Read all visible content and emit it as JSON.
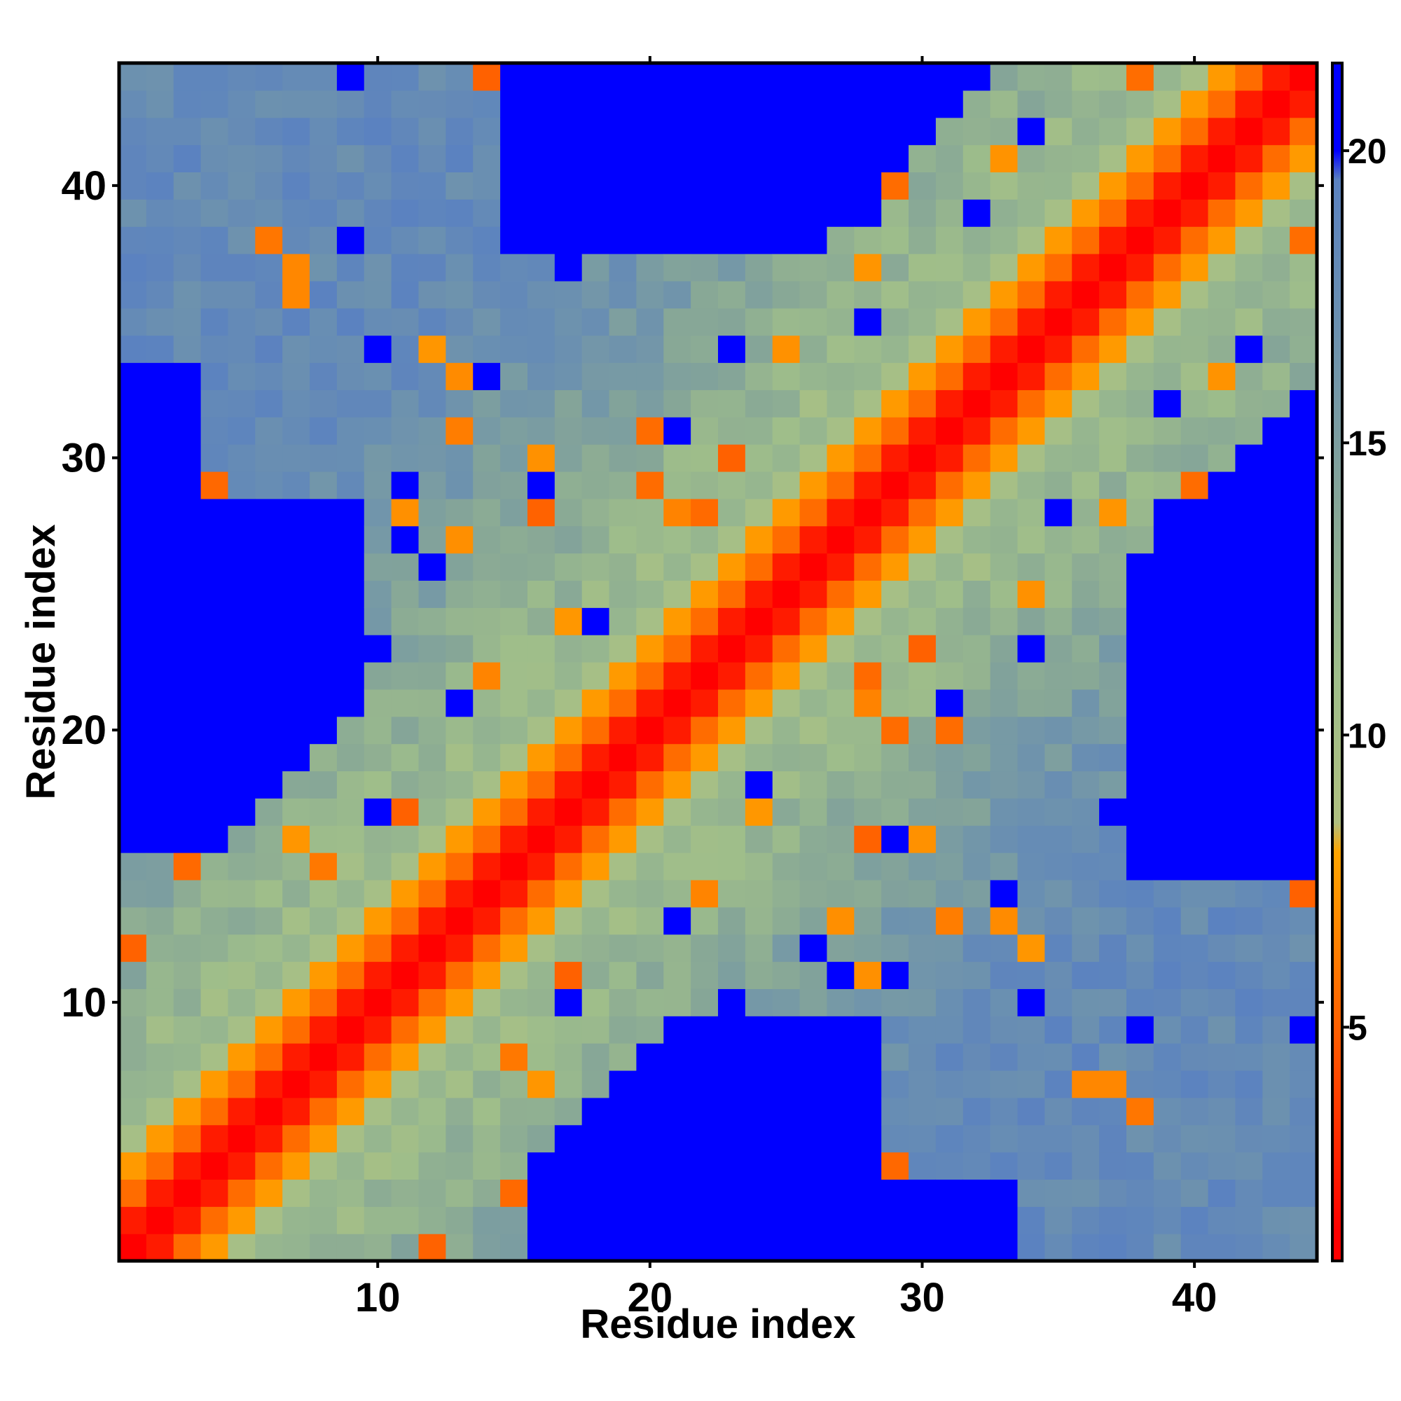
{
  "chart_data": {
    "type": "heatmap",
    "title": "",
    "xlabel": "Residue index",
    "ylabel": "Residue index",
    "n_residues": 44,
    "xlim": [
      0.5,
      44.5
    ],
    "ylim": [
      0.5,
      44.5
    ],
    "x_ticks": [
      10,
      20,
      30,
      40
    ],
    "y_ticks": [
      10,
      20,
      30,
      40
    ],
    "x_tick_labels": [
      "10",
      "20",
      "30",
      "40"
    ],
    "y_tick_labels": [
      "10",
      "20",
      "30",
      "40"
    ],
    "colorbar": {
      "range": [
        1,
        21.5
      ],
      "ticks": [
        5,
        10,
        15,
        20
      ],
      "tick_labels": [
        "5",
        "10",
        "15",
        "20"
      ],
      "position": "right"
    },
    "color_stops": [
      {
        "value": 1.5,
        "color": "#ff0000"
      },
      {
        "value": 5.0,
        "color": "#ff6000"
      },
      {
        "value": 8.0,
        "color": "#ffa500"
      },
      {
        "value": 8.5,
        "color": "#b0c080"
      },
      {
        "value": 11.0,
        "color": "#9fbe8a"
      },
      {
        "value": 14.0,
        "color": "#85a598"
      },
      {
        "value": 17.0,
        "color": "#6b90b0"
      },
      {
        "value": 19.5,
        "color": "#5b82c0"
      },
      {
        "value": 20.0,
        "color": "#0000ff"
      }
    ],
    "cutoff_value": 20,
    "description_of_values": "symmetric residue-residue distance matrix; values beyond cutoff drawn saturated blue",
    "contact_rule": {
      "diagonal_band": [
        [
          0,
          1.0
        ],
        [
          1,
          2.5
        ],
        [
          2,
          5.5
        ],
        [
          3,
          7.5
        ],
        [
          4,
          10
        ],
        [
          5,
          12
        ]
      ],
      "segment_A": [
        1,
        14
      ],
      "segment_B": [
        15,
        29
      ],
      "segment_C": [
        30,
        44
      ],
      "far_segment_pairs": [
        [
          "A",
          "C"
        ]
      ],
      "far_offsets": 18
    },
    "far_clusters": [
      {
        "rows": [
          1,
          9
        ],
        "cols": [
          16,
          28
        ]
      },
      {
        "rows": [
          16,
          28
        ],
        "cols": [
          1,
          9
        ]
      },
      {
        "rows": [
          1,
          3
        ],
        "cols": [
          16,
          33
        ]
      },
      {
        "rows": [
          16,
          33
        ],
        "cols": [
          1,
          3
        ]
      },
      {
        "rows": [
          15,
          30
        ],
        "cols": [
          38,
          44
        ]
      },
      {
        "rows": [
          38,
          44
        ],
        "cols": [
          15,
          30
        ]
      },
      {
        "rows": [
          38,
          44
        ],
        "cols": [
          16,
          33
        ]
      },
      {
        "rows": [
          16,
          33
        ],
        "cols": [
          38,
          44
        ]
      }
    ]
  }
}
